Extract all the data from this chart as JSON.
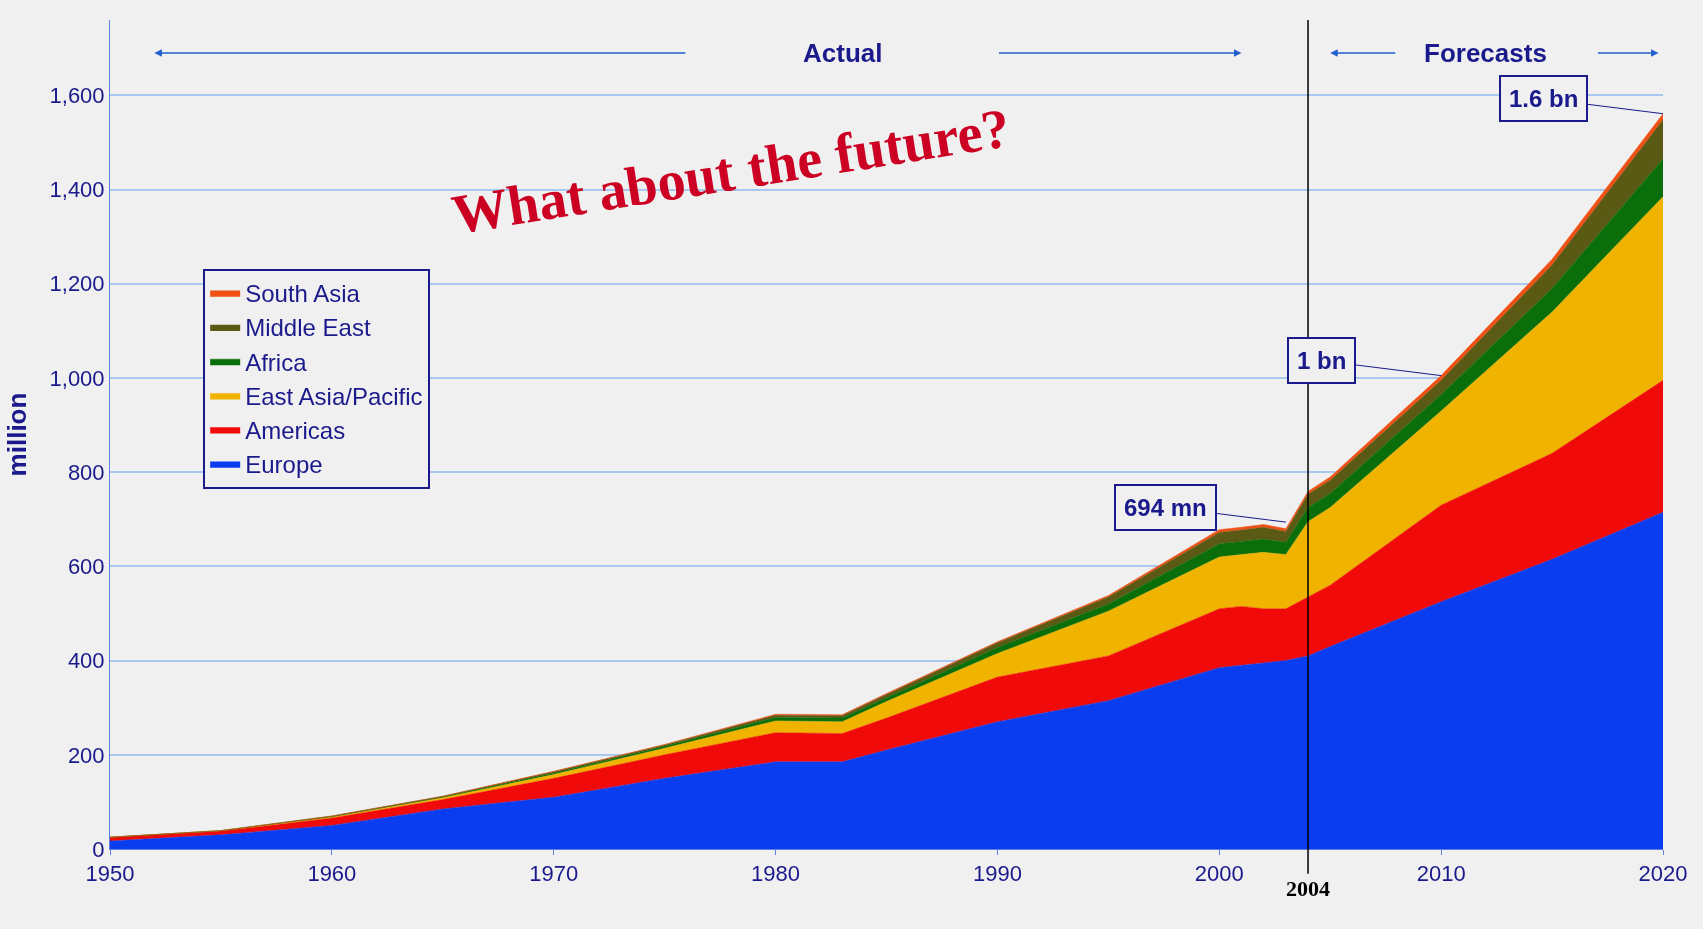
{
  "chart_data": {
    "type": "area",
    "stacked": true,
    "ylabel": "million",
    "x": [
      1950,
      1955,
      1960,
      1965,
      1970,
      1975,
      1980,
      1983,
      1985,
      1990,
      1995,
      2000,
      2001,
      2002,
      2003,
      2004,
      2005,
      2010,
      2015,
      2020
    ],
    "series": [
      {
        "name": "Europe",
        "color": "#0a3cf0",
        "values": [
          17,
          30,
          50,
          85,
          110,
          150,
          185,
          185,
          210,
          270,
          315,
          385,
          390,
          395,
          400,
          410,
          430,
          525,
          615,
          715
        ]
      },
      {
        "name": "Americas",
        "color": "#f00a0a",
        "values": [
          8,
          8,
          16,
          20,
          40,
          50,
          62,
          60,
          68,
          95,
          95,
          125,
          125,
          115,
          110,
          125,
          130,
          205,
          225,
          280
        ]
      },
      {
        "name": "East Asia/Pacific",
        "color": "#f0b400",
        "values": [
          0,
          1,
          2,
          4,
          8,
          14,
          25,
          25,
          35,
          50,
          95,
          110,
          110,
          120,
          115,
          160,
          165,
          200,
          300,
          390
        ]
      },
      {
        "name": "Africa",
        "color": "#0a6e0a",
        "values": [
          0,
          0,
          1,
          2,
          3,
          4,
          7,
          8,
          8,
          13,
          15,
          28,
          28,
          28,
          26,
          30,
          30,
          35,
          50,
          80
        ]
      },
      {
        "name": "Middle East",
        "color": "#5a5a14",
        "values": [
          0,
          0,
          1,
          1,
          3,
          3,
          5,
          5,
          7,
          10,
          15,
          24,
          24,
          25,
          23,
          28,
          28,
          30,
          50,
          83
        ]
      },
      {
        "name": "South Asia",
        "color": "#f05014",
        "values": [
          0,
          0,
          0,
          0,
          1,
          1,
          2,
          2,
          2,
          2,
          3,
          6,
          6,
          6,
          6,
          6,
          7,
          10,
          12,
          13
        ]
      }
    ],
    "xlim": [
      1950,
      2020
    ],
    "xticks": [
      1950,
      1960,
      1970,
      1980,
      1990,
      2000,
      2010,
      2020
    ],
    "ylim": [
      0,
      1760
    ],
    "yticks": [
      0,
      200,
      400,
      600,
      {
        "value": 800,
        "label": "800"
      },
      {
        "value": 1000,
        "label": "1,000"
      },
      {
        "value": 1200,
        "label": "1,200"
      },
      {
        "value": 1400,
        "label": "1,400"
      },
      {
        "value": 1600,
        "label": "1,600"
      }
    ],
    "grid": "y",
    "legend": "top left",
    "ref_lines": [
      {
        "axis": "x",
        "value": 2004,
        "label": "2004",
        "color": "#000000"
      }
    ],
    "annotations": [
      "Actual",
      "Forecasts",
      "What about the future?",
      {
        "text": "1.6 bn",
        "x": 2020,
        "y": 1561
      },
      {
        "text": "1 bn",
        "x": 2010,
        "y": 1005
      },
      {
        "text": "694 mn",
        "x": 2003,
        "y": 694
      }
    ]
  }
}
